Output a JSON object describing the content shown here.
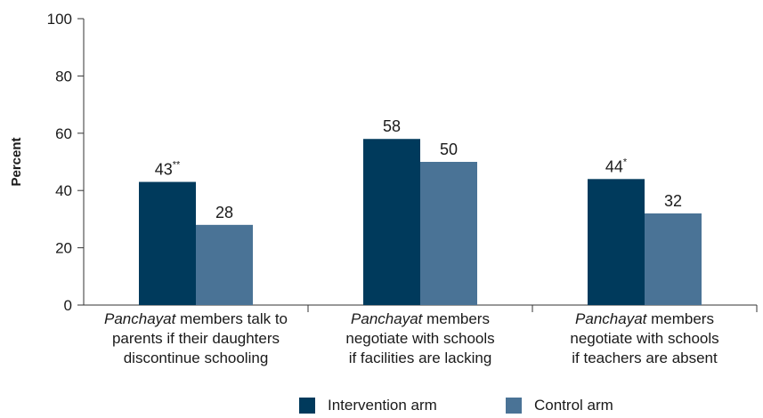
{
  "chart_data": {
    "type": "bar",
    "ylabel": "Percent",
    "ylim": [
      0,
      100
    ],
    "yticks": [
      "0",
      "20",
      "40",
      "60",
      "80",
      "100"
    ],
    "categories": [
      {
        "emph": "Panchayat",
        "line1_rest": " members talk to",
        "line2": "parents if their daughters",
        "line3": "discontinue schooling"
      },
      {
        "emph": "Panchayat",
        "line1_rest": " members",
        "line2": "negotiate with schools",
        "line3": "if facilities are lacking"
      },
      {
        "emph": "Panchayat",
        "line1_rest": " members",
        "line2": "negotiate with schools",
        "line3": "if teachers are absent"
      }
    ],
    "series": [
      {
        "name": "Intervention arm",
        "color": "#003a5c",
        "values": [
          43,
          58,
          44
        ],
        "labels": [
          "43",
          "58",
          "44"
        ],
        "markers": [
          "**",
          "",
          "*"
        ]
      },
      {
        "name": "Control arm",
        "color": "#4a7396",
        "values": [
          28,
          50,
          32
        ],
        "labels": [
          "28",
          "50",
          "32"
        ],
        "markers": [
          "",
          "",
          ""
        ]
      }
    ],
    "grid": false,
    "legend_position": "bottom-center"
  }
}
